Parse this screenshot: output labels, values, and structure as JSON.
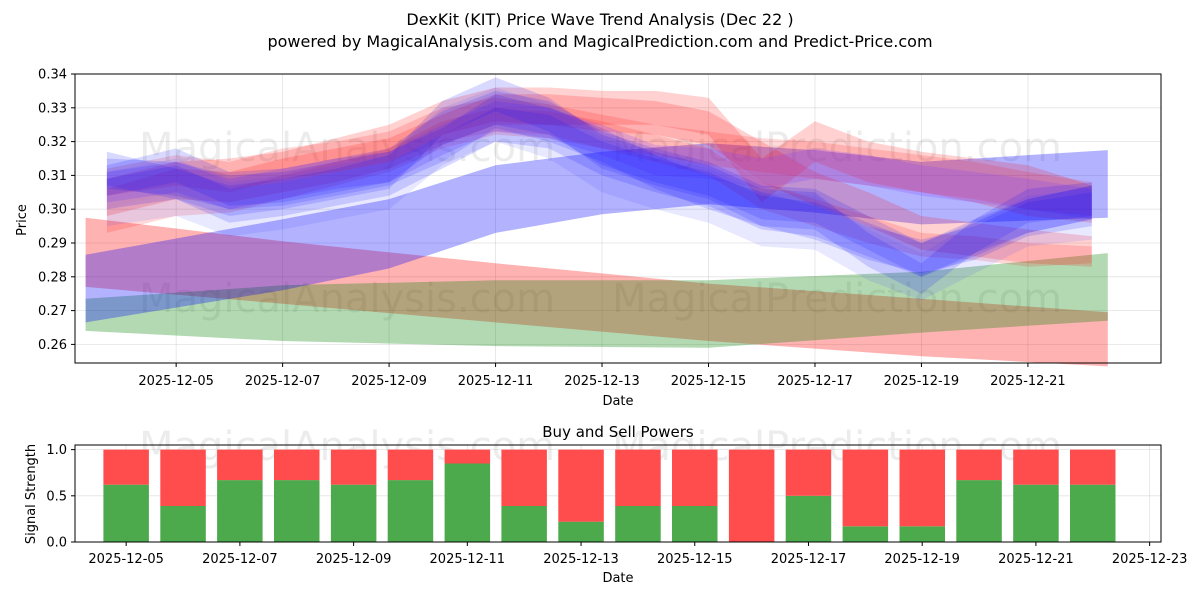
{
  "chart_data": [
    {
      "type": "area",
      "title": "DexKit (KIT) Price Wave Trend Analysis (Dec 22 )",
      "subtitle": "powered by MagicalAnalysis.com and MagicalPrediction.com and Predict-Price.com",
      "xlabel": "Date",
      "ylabel": "Price",
      "ylim": [
        0.2545,
        0.34
      ],
      "xlim": [
        3.1,
        23.5
      ],
      "x_tick_values": [
        5,
        7,
        9,
        11,
        13,
        15,
        17,
        19,
        21
      ],
      "x_tick_labels": [
        "2025-12-05",
        "2025-12-07",
        "2025-12-09",
        "2025-12-11",
        "2025-12-13",
        "2025-12-15",
        "2025-12-17",
        "2025-12-19",
        "2025-12-21"
      ],
      "y_ticks": [
        0.26,
        0.27,
        0.28,
        0.29,
        0.3,
        0.31,
        0.32,
        0.33,
        0.34
      ],
      "y_tick_labels": [
        "0.26",
        "0.27",
        "0.28",
        "0.29",
        "0.30",
        "0.31",
        "0.32",
        "0.33",
        "0.34"
      ],
      "watermarks": [
        "MagicalAnalysis.com",
        "MagicalPrediction.com",
        "MagicalAnalysis.com",
        "MagicalPrediction.com"
      ],
      "bands": [
        {
          "name": "long red",
          "color": "#ff0000",
          "alpha": 0.3,
          "x": [
            3.3,
            7,
            11,
            15,
            19,
            22.5
          ],
          "upper": [
            0.2975,
            0.2905,
            0.284,
            0.278,
            0.2735,
            0.2695
          ],
          "lower": [
            0.277,
            0.272,
            0.2665,
            0.261,
            0.2565,
            0.2535
          ]
        },
        {
          "name": "long green",
          "color": "#008000",
          "alpha": 0.3,
          "x": [
            3.3,
            7,
            11,
            15,
            19,
            22.5
          ],
          "upper": [
            0.2735,
            0.2775,
            0.279,
            0.279,
            0.2815,
            0.287
          ],
          "lower": [
            0.264,
            0.261,
            0.2595,
            0.259,
            0.2635,
            0.267
          ]
        },
        {
          "name": "long blue",
          "color": "#0000ff",
          "alpha": 0.3,
          "x": [
            3.3,
            7,
            9,
            11,
            13,
            15,
            17,
            19,
            22.5
          ],
          "upper": [
            0.2865,
            0.297,
            0.303,
            0.313,
            0.317,
            0.3195,
            0.3175,
            0.314,
            0.3175
          ],
          "lower": [
            0.2665,
            0.276,
            0.2825,
            0.293,
            0.2985,
            0.3015,
            0.299,
            0.2955,
            0.2975
          ]
        },
        {
          "name": "red wave 1",
          "color": "#ff0000",
          "alpha": 0.18,
          "x": [
            3.7,
            5,
            6,
            7,
            8,
            9,
            10,
            11,
            12,
            13,
            14,
            15,
            16,
            17,
            18,
            19,
            20,
            21,
            22.2
          ],
          "upper": [
            0.309,
            0.314,
            0.315,
            0.317,
            0.321,
            0.325,
            0.332,
            0.336,
            0.336,
            0.335,
            0.335,
            0.333,
            0.315,
            0.326,
            0.32,
            0.317,
            0.315,
            0.313,
            0.307
          ],
          "lower": [
            0.3,
            0.305,
            0.306,
            0.308,
            0.311,
            0.314,
            0.322,
            0.326,
            0.325,
            0.325,
            0.325,
            0.322,
            0.302,
            0.314,
            0.308,
            0.305,
            0.302,
            0.298,
            0.296
          ]
        },
        {
          "name": "red wave 2",
          "color": "#ff0000",
          "alpha": 0.18,
          "x": [
            3.7,
            5,
            6,
            7,
            8,
            9,
            10,
            11,
            12,
            13,
            14,
            15,
            16,
            17,
            18,
            19,
            20,
            21,
            22.2
          ],
          "upper": [
            0.306,
            0.312,
            0.311,
            0.315,
            0.318,
            0.321,
            0.328,
            0.334,
            0.334,
            0.333,
            0.332,
            0.329,
            0.32,
            0.311,
            0.305,
            0.298,
            0.296,
            0.294,
            0.292
          ],
          "lower": [
            0.298,
            0.303,
            0.302,
            0.305,
            0.308,
            0.312,
            0.319,
            0.325,
            0.325,
            0.323,
            0.322,
            0.319,
            0.308,
            0.301,
            0.295,
            0.288,
            0.286,
            0.284,
            0.283
          ]
        },
        {
          "name": "red wave 3",
          "color": "#ff0000",
          "alpha": 0.15,
          "x": [
            3.7,
            5,
            6,
            7,
            8,
            9,
            10,
            11,
            12,
            13,
            14,
            15,
            16,
            17,
            18,
            19,
            20,
            21,
            22.2
          ],
          "upper": [
            0.312,
            0.316,
            0.314,
            0.318,
            0.32,
            0.323,
            0.33,
            0.333,
            0.331,
            0.328,
            0.325,
            0.323,
            0.321,
            0.32,
            0.318,
            0.316,
            0.314,
            0.311,
            0.308
          ],
          "lower": [
            0.304,
            0.307,
            0.305,
            0.309,
            0.311,
            0.314,
            0.32,
            0.323,
            0.322,
            0.318,
            0.316,
            0.313,
            0.311,
            0.309,
            0.307,
            0.305,
            0.303,
            0.3,
            0.298
          ]
        },
        {
          "name": "red wave 4",
          "color": "#ff0000",
          "alpha": 0.15,
          "x": [
            3.7,
            5,
            6,
            7,
            8,
            9,
            10,
            11,
            12,
            13,
            14,
            15,
            16,
            17,
            18,
            19,
            20,
            21,
            22.2
          ],
          "upper": [
            0.3,
            0.305,
            0.306,
            0.31,
            0.314,
            0.318,
            0.326,
            0.33,
            0.329,
            0.326,
            0.322,
            0.318,
            0.308,
            0.303,
            0.298,
            0.293,
            0.292,
            0.29,
            0.289
          ],
          "lower": [
            0.293,
            0.298,
            0.299,
            0.303,
            0.307,
            0.311,
            0.318,
            0.322,
            0.321,
            0.318,
            0.314,
            0.31,
            0.3,
            0.295,
            0.29,
            0.286,
            0.285,
            0.283,
            0.284
          ]
        },
        {
          "name": "purple wave 1",
          "color": "#8040ff",
          "alpha": 0.22,
          "x": [
            3.7,
            5,
            6,
            7,
            8,
            9,
            10,
            11,
            12,
            13,
            14,
            15,
            16,
            17,
            18,
            19,
            20,
            21,
            22.2
          ],
          "upper": [
            0.311,
            0.314,
            0.309,
            0.312,
            0.315,
            0.317,
            0.325,
            0.332,
            0.33,
            0.325,
            0.319,
            0.318,
            0.315,
            0.318,
            0.316,
            0.313,
            0.311,
            0.309,
            0.306
          ],
          "lower": [
            0.302,
            0.305,
            0.3,
            0.303,
            0.306,
            0.308,
            0.316,
            0.323,
            0.321,
            0.316,
            0.31,
            0.309,
            0.306,
            0.309,
            0.307,
            0.304,
            0.302,
            0.3,
            0.297
          ]
        },
        {
          "name": "blue wave 1",
          "color": "#0000ff",
          "alpha": 0.15,
          "x": [
            3.7,
            5,
            6,
            7,
            8,
            9,
            10,
            11,
            12,
            13,
            14,
            15,
            16,
            17,
            18,
            19,
            20,
            21,
            22.2
          ],
          "upper": [
            0.317,
            0.312,
            0.307,
            0.309,
            0.312,
            0.316,
            0.332,
            0.339,
            0.333,
            0.322,
            0.317,
            0.313,
            0.306,
            0.305,
            0.293,
            0.284,
            0.297,
            0.306,
            0.308
          ],
          "lower": [
            0.307,
            0.303,
            0.298,
            0.3,
            0.303,
            0.306,
            0.322,
            0.329,
            0.323,
            0.312,
            0.307,
            0.303,
            0.295,
            0.294,
            0.283,
            0.275,
            0.287,
            0.296,
            0.298
          ]
        },
        {
          "name": "blue wave 2",
          "color": "#0000ff",
          "alpha": 0.15,
          "x": [
            3.7,
            5,
            6,
            7,
            8,
            9,
            10,
            11,
            12,
            13,
            14,
            15,
            16,
            17,
            18,
            19,
            20,
            21,
            22.2
          ],
          "upper": [
            0.313,
            0.318,
            0.311,
            0.312,
            0.315,
            0.318,
            0.329,
            0.335,
            0.332,
            0.323,
            0.318,
            0.314,
            0.307,
            0.306,
            0.298,
            0.29,
            0.297,
            0.303,
            0.307
          ],
          "lower": [
            0.304,
            0.308,
            0.301,
            0.302,
            0.305,
            0.308,
            0.319,
            0.325,
            0.322,
            0.313,
            0.308,
            0.304,
            0.297,
            0.296,
            0.288,
            0.28,
            0.287,
            0.293,
            0.297
          ]
        },
        {
          "name": "blue wave 3",
          "color": "#0000ff",
          "alpha": 0.15,
          "x": [
            3.7,
            5,
            6,
            7,
            8,
            9,
            10,
            11,
            12,
            13,
            14,
            15,
            16,
            17,
            18,
            19,
            20,
            21,
            22.2
          ],
          "upper": [
            0.315,
            0.314,
            0.31,
            0.311,
            0.314,
            0.317,
            0.324,
            0.334,
            0.33,
            0.324,
            0.316,
            0.31,
            0.305,
            0.301,
            0.295,
            0.291,
            0.295,
            0.302,
            0.305
          ],
          "lower": [
            0.306,
            0.304,
            0.3,
            0.301,
            0.304,
            0.307,
            0.314,
            0.324,
            0.32,
            0.314,
            0.306,
            0.3,
            0.295,
            0.291,
            0.285,
            0.281,
            0.285,
            0.292,
            0.295
          ]
        },
        {
          "name": "blue wave 4",
          "color": "#0000ff",
          "alpha": 0.15,
          "x": [
            3.7,
            5,
            6,
            7,
            8,
            9,
            10,
            11,
            12,
            13,
            14,
            15,
            16,
            17,
            18,
            19,
            20,
            21,
            22.2
          ],
          "upper": [
            0.309,
            0.313,
            0.306,
            0.308,
            0.311,
            0.314,
            0.322,
            0.33,
            0.328,
            0.32,
            0.315,
            0.311,
            0.304,
            0.302,
            0.296,
            0.29,
            0.296,
            0.303,
            0.307
          ],
          "lower": [
            0.3,
            0.303,
            0.296,
            0.298,
            0.301,
            0.304,
            0.312,
            0.32,
            0.318,
            0.31,
            0.305,
            0.301,
            0.294,
            0.292,
            0.286,
            0.28,
            0.286,
            0.293,
            0.297
          ]
        },
        {
          "name": "blue wave 5",
          "color": "#4040ff",
          "alpha": 0.12,
          "x": [
            3.7,
            5,
            6,
            7,
            8,
            9,
            10,
            11,
            12,
            13,
            14,
            15,
            16,
            17,
            18,
            19,
            20,
            21,
            22.2
          ],
          "upper": [
            0.311,
            0.315,
            0.308,
            0.31,
            0.313,
            0.316,
            0.33,
            0.336,
            0.331,
            0.321,
            0.316,
            0.312,
            0.305,
            0.304,
            0.294,
            0.287,
            0.296,
            0.304,
            0.306
          ],
          "lower": [
            0.295,
            0.298,
            0.292,
            0.294,
            0.297,
            0.3,
            0.313,
            0.32,
            0.315,
            0.305,
            0.3,
            0.296,
            0.289,
            0.288,
            0.279,
            0.273,
            0.281,
            0.289,
            0.291
          ]
        }
      ]
    },
    {
      "type": "bar",
      "title": "Buy and Sell Powers",
      "xlabel": "Date",
      "ylabel": "Signal Strength",
      "ylim": [
        0,
        1.05
      ],
      "xlim": [
        4.1,
        23.2
      ],
      "y_ticks": [
        0.0,
        0.5,
        1.0
      ],
      "y_tick_labels": [
        "0.0",
        "0.5",
        "1.0"
      ],
      "x_tick_values": [
        5,
        7,
        9,
        11,
        13,
        15,
        17,
        19,
        21,
        23
      ],
      "x_tick_labels": [
        "2025-12-05",
        "2025-12-07",
        "2025-12-09",
        "2025-12-11",
        "2025-12-13",
        "2025-12-15",
        "2025-12-17",
        "2025-12-19",
        "2025-12-21",
        "2025-12-23"
      ],
      "watermarks": [
        "MagicalAnalysis.com",
        "MagicalPrediction.com"
      ],
      "bar_x": [
        5,
        6,
        7,
        8,
        9,
        10,
        11,
        12,
        13,
        14,
        15,
        16,
        17,
        18,
        19,
        20,
        21,
        22
      ],
      "series": [
        {
          "name": "Buy",
          "color": "#4caa4c",
          "values": [
            0.62,
            0.39,
            0.67,
            0.67,
            0.62,
            0.67,
            0.85,
            0.39,
            0.22,
            0.39,
            0.39,
            0.0,
            0.5,
            0.17,
            0.17,
            0.67,
            0.62,
            0.62
          ]
        },
        {
          "name": "Sell",
          "color": "#ff4d4d",
          "values": [
            0.38,
            0.61,
            0.33,
            0.33,
            0.38,
            0.33,
            0.15,
            0.61,
            0.78,
            0.61,
            0.61,
            1.0,
            0.5,
            0.83,
            0.83,
            0.33,
            0.38,
            0.38
          ]
        }
      ]
    }
  ]
}
